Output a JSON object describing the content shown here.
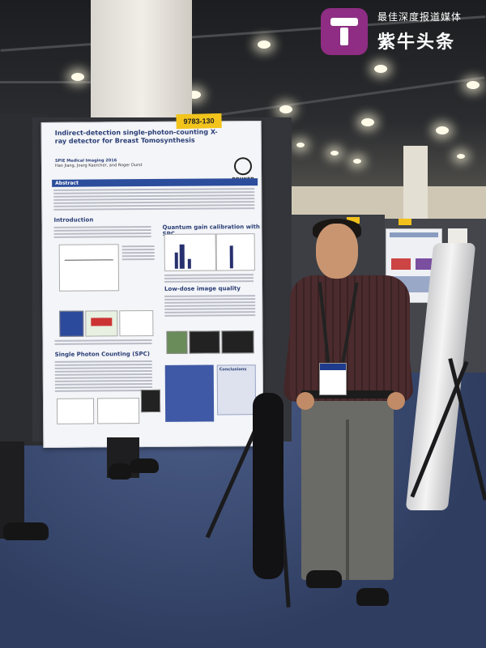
{
  "watermark": {
    "tagline": "最佳深度报道媒体",
    "brand": "紫牛头条",
    "brand_color": "#8e2d83",
    "icon": "zi-niu-logo-icon"
  },
  "poster": {
    "ticket_number": "9783-130",
    "title": "Indirect-detection single-photon-counting X-ray detector for Breast Tomosynthesis",
    "conference": "SPIE Medical Imaging 2016",
    "authors": "Hao Jiang, Joerg Kaercher, and Roger Durst",
    "logo_text": "BRUKER",
    "sections": {
      "abstract": "Abstract",
      "introduction": "Introduction",
      "quantum": "Quantum gain calibration with SPC",
      "low_dose": "Low-dose image quality",
      "spc": "Single Photon Counting (SPC)",
      "conclusions": "Conclusions"
    }
  }
}
